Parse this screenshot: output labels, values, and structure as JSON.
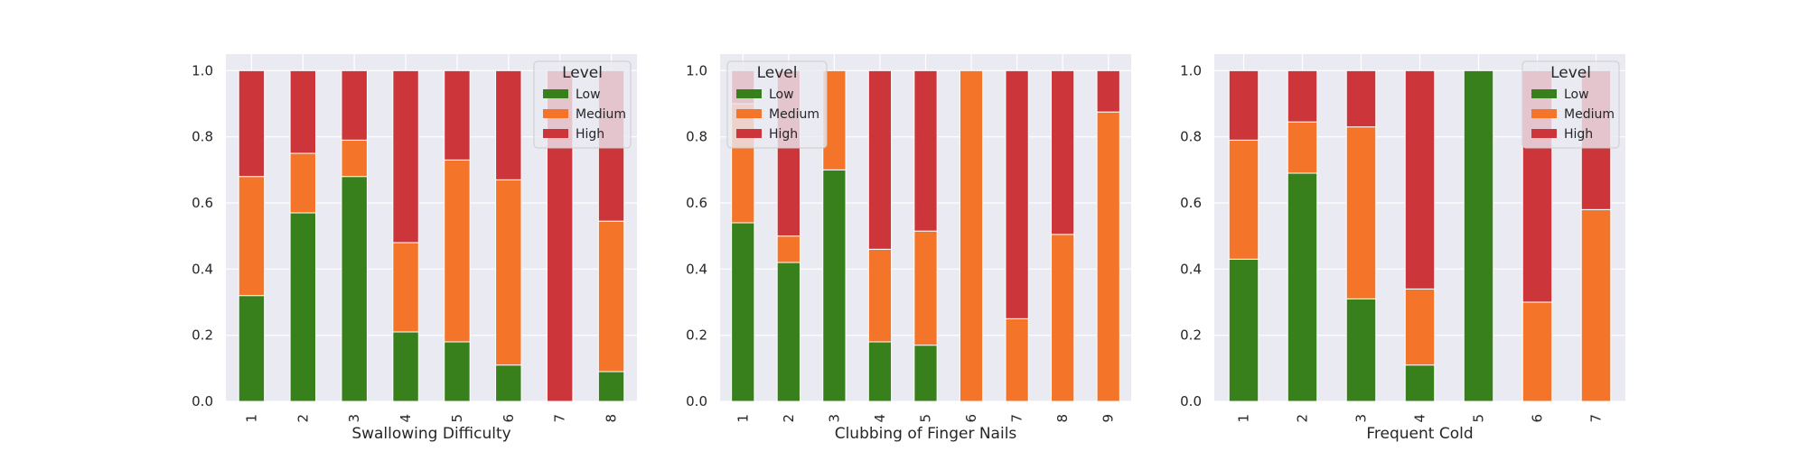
{
  "chart_data": [
    {
      "type": "bar",
      "stacked": true,
      "xlabel": "Swallowing Difficulty",
      "ylabel": "",
      "categories": [
        "1",
        "2",
        "3",
        "4",
        "5",
        "6",
        "7",
        "8"
      ],
      "ylim": [
        0,
        1.05
      ],
      "yticks": [
        "0.0",
        "0.2",
        "0.4",
        "0.6",
        "0.8",
        "1.0"
      ],
      "legend": {
        "title": "Level",
        "placement": "top-right"
      },
      "series": [
        {
          "name": "Low",
          "color": "#38801c",
          "values": [
            0.32,
            0.57,
            0.68,
            0.21,
            0.18,
            0.11,
            0.0,
            0.09
          ]
        },
        {
          "name": "Medium",
          "color": "#f47529",
          "values": [
            0.36,
            0.18,
            0.11,
            0.27,
            0.55,
            0.56,
            0.0,
            0.455
          ]
        },
        {
          "name": "High",
          "color": "#cc3539",
          "values": [
            0.32,
            0.25,
            0.21,
            0.52,
            0.27,
            0.33,
            1.0,
            0.455
          ]
        }
      ]
    },
    {
      "type": "bar",
      "stacked": true,
      "xlabel": "Clubbing of Finger Nails",
      "ylabel": "",
      "categories": [
        "1",
        "2",
        "3",
        "4",
        "5",
        "6",
        "7",
        "8",
        "9"
      ],
      "ylim": [
        0,
        1.05
      ],
      "yticks": [
        "0.0",
        "0.2",
        "0.4",
        "0.6",
        "0.8",
        "1.0"
      ],
      "legend": {
        "title": "Level",
        "placement": "top-left"
      },
      "series": [
        {
          "name": "Low",
          "color": "#38801c",
          "values": [
            0.54,
            0.42,
            0.7,
            0.18,
            0.17,
            0.0,
            0.0,
            0.0,
            0.0
          ]
        },
        {
          "name": "Medium",
          "color": "#f47529",
          "values": [
            0.36,
            0.08,
            0.3,
            0.28,
            0.345,
            1.0,
            0.25,
            0.505,
            0.875
          ]
        },
        {
          "name": "High",
          "color": "#cc3539",
          "values": [
            0.1,
            0.5,
            0.0,
            0.54,
            0.485,
            0.0,
            0.75,
            0.495,
            0.125
          ]
        }
      ]
    },
    {
      "type": "bar",
      "stacked": true,
      "xlabel": "Frequent Cold",
      "ylabel": "",
      "categories": [
        "1",
        "2",
        "3",
        "4",
        "5",
        "6",
        "7"
      ],
      "ylim": [
        0,
        1.05
      ],
      "yticks": [
        "0.0",
        "0.2",
        "0.4",
        "0.6",
        "0.8",
        "1.0"
      ],
      "legend": {
        "title": "Level",
        "placement": "top-right"
      },
      "series": [
        {
          "name": "Low",
          "color": "#38801c",
          "values": [
            0.43,
            0.69,
            0.31,
            0.11,
            1.0,
            0.0,
            0.0
          ]
        },
        {
          "name": "Medium",
          "color": "#f47529",
          "values": [
            0.36,
            0.155,
            0.52,
            0.23,
            0.0,
            0.3,
            0.58
          ]
        },
        {
          "name": "High",
          "color": "#cc3539",
          "values": [
            0.21,
            0.155,
            0.17,
            0.66,
            0.0,
            0.7,
            0.42
          ]
        }
      ]
    }
  ]
}
